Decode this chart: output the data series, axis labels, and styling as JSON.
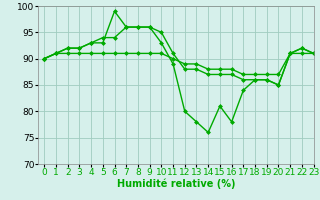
{
  "xlabel": "Humidité relative (%)",
  "xlim": [
    -0.5,
    23
  ],
  "ylim": [
    70,
    100
  ],
  "yticks": [
    70,
    75,
    80,
    85,
    90,
    95,
    100
  ],
  "xticks": [
    0,
    1,
    2,
    3,
    4,
    5,
    6,
    7,
    8,
    9,
    10,
    11,
    12,
    13,
    14,
    15,
    16,
    17,
    18,
    19,
    20,
    21,
    22,
    23
  ],
  "bg_color": "#d6f0eb",
  "grid_color": "#a0ccbf",
  "line_color": "#00aa00",
  "line1": [
    90,
    91,
    92,
    92,
    93,
    93,
    99,
    96,
    96,
    96,
    93,
    89,
    80,
    78,
    76,
    81,
    78,
    84,
    86,
    86,
    85,
    91,
    92,
    91
  ],
  "line2": [
    90,
    91,
    92,
    92,
    93,
    94,
    94,
    96,
    96,
    96,
    95,
    91,
    88,
    88,
    87,
    87,
    87,
    86,
    86,
    86,
    85,
    91,
    92,
    91
  ],
  "line3": [
    90,
    91,
    91,
    91,
    91,
    91,
    91,
    91,
    91,
    91,
    91,
    90,
    89,
    89,
    88,
    88,
    88,
    87,
    87,
    87,
    87,
    91,
    91,
    91
  ],
  "xlabel_fontsize": 7,
  "tick_fontsize": 6.5,
  "line_width": 1.0,
  "marker_size": 2.5
}
